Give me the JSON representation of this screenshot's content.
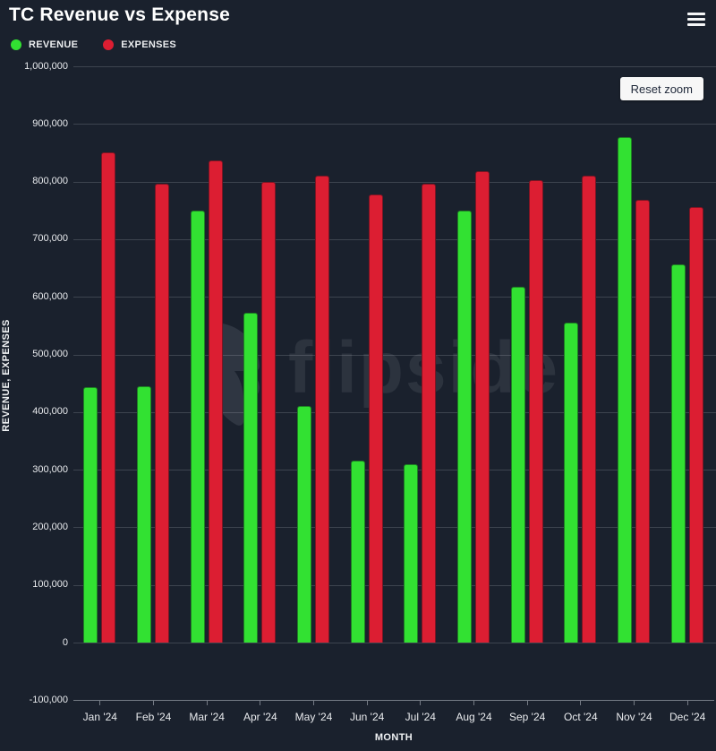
{
  "header": {
    "title": "TC Revenue vs Expense"
  },
  "buttons": {
    "reset_zoom": "Reset zoom"
  },
  "watermark": {
    "text": "flipside"
  },
  "colors": {
    "background": "#1a212d",
    "revenue": "#32e132",
    "expenses": "#dc1e32",
    "gridline": "#3d444f",
    "axis_line": "#757b85",
    "text": "#ffffff"
  },
  "chart_data": {
    "type": "bar",
    "title": "TC Revenue vs Expense",
    "xlabel": "MONTH",
    "ylabel": "REVENUE, EXPENSES",
    "categories": [
      "Jan '24",
      "Feb '24",
      "Mar '24",
      "Apr '24",
      "May '24",
      "Jun '24",
      "Jul '24",
      "Aug '24",
      "Sep '24",
      "Oct '24",
      "Nov '24",
      "Dec '24"
    ],
    "series": [
      {
        "name": "REVENUE",
        "color": "#32e132",
        "values": [
          443000,
          445000,
          750000,
          572000,
          410000,
          316000,
          310000,
          749000,
          618000,
          555000,
          877000,
          656000
        ]
      },
      {
        "name": "EXPENSES",
        "color": "#dc1e32",
        "values": [
          850000,
          797000,
          836000,
          799000,
          811000,
          778000,
          796000,
          818000,
          803000,
          810000,
          768000,
          756000
        ]
      }
    ],
    "ylim": [
      -100000,
      1000000
    ],
    "ytick_step": 100000,
    "ytick_labels": [
      "-100,000",
      "0",
      "100,000",
      "200,000",
      "300,000",
      "400,000",
      "500,000",
      "600,000",
      "700,000",
      "800,000",
      "900,000",
      "1,000,000"
    ],
    "grid": true,
    "legend_position": "top-left",
    "bar_baseline": 0
  }
}
